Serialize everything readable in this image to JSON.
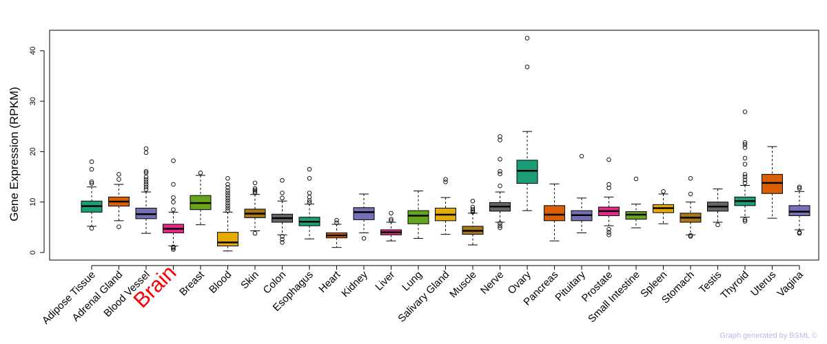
{
  "chart_data": {
    "type": "box",
    "title": "",
    "ylabel": "Gene Expression (RPKM)",
    "xlabel": "",
    "ylim": [
      -1,
      44
    ],
    "yticks": [
      0,
      10,
      20,
      30,
      40
    ],
    "highlight": {
      "category": "Brain",
      "color": "#ff0000"
    },
    "categories": [
      "Adipose Tissue",
      "Adrenal Gland",
      "Blood Vessel",
      "Brain",
      "Breast",
      "Blood",
      "Skin",
      "Colon",
      "Esophagus",
      "Heart",
      "Kidney",
      "Liver",
      "Lung",
      "Salivary Gland",
      "Muscle",
      "Nerve",
      "Ovary",
      "Pancreas",
      "Pituitary",
      "Prostate",
      "Small Intestine",
      "Spleen",
      "Stomach",
      "Testis",
      "Thyroid",
      "Uterus",
      "Vagina"
    ],
    "boxes": [
      {
        "whisker_low": 5.2,
        "q1": 8.0,
        "median": 9.2,
        "q3": 10.2,
        "whisker_high": 13.0,
        "outliers": [
          4.8,
          13.7,
          14.0,
          16.5,
          18.0
        ],
        "color": "#1b9e77"
      },
      {
        "whisker_low": 6.3,
        "q1": 9.2,
        "median": 10.1,
        "q3": 11.0,
        "whisker_high": 13.5,
        "outliers": [
          5.1,
          14.5,
          15.5
        ],
        "color": "#d95f02"
      },
      {
        "whisker_low": 3.8,
        "q1": 6.7,
        "median": 7.6,
        "q3": 8.8,
        "whisker_high": 12.0,
        "outliers": [
          12.5,
          13.0,
          13.5,
          14.0,
          14.5,
          15.0,
          15.8,
          16.1,
          19.8,
          20.6
        ],
        "color": "#7570b3"
      },
      {
        "whisker_low": 1.3,
        "q1": 3.9,
        "median": 4.7,
        "q3": 5.6,
        "whisker_high": 8.0,
        "outliers": [
          0.6,
          0.9,
          1.1,
          8.5,
          10.0,
          10.9,
          13.5,
          18.2
        ],
        "color": "#e7298a"
      },
      {
        "whisker_low": 5.5,
        "q1": 8.5,
        "median": 9.8,
        "q3": 11.3,
        "whisker_high": 15.3,
        "outliers": [
          15.8
        ],
        "color": "#66a61e"
      },
      {
        "whisker_low": 0.3,
        "q1": 1.3,
        "median": 2.0,
        "q3": 4.0,
        "whisker_high": 8.0,
        "outliers": [
          8.3,
          8.8,
          9.3,
          9.8,
          10.3,
          10.8,
          11.3,
          11.8,
          12.3,
          12.9,
          13.5,
          14.7
        ],
        "color": "#e6ab02"
      },
      {
        "whisker_low": 4.3,
        "q1": 6.9,
        "median": 7.7,
        "q3": 8.6,
        "whisker_high": 11.5,
        "outliers": [
          3.8,
          11.8,
          12.1,
          12.4,
          12.7,
          13.8
        ],
        "color": "#a6761d"
      },
      {
        "whisker_low": 3.5,
        "q1": 6.0,
        "median": 6.8,
        "q3": 7.6,
        "whisker_high": 10.2,
        "outliers": [
          2.0,
          2.6,
          3.2,
          10.8,
          11.8,
          14.3
        ],
        "color": "#666666"
      },
      {
        "whisker_low": 2.7,
        "q1": 5.3,
        "median": 6.1,
        "q3": 7.0,
        "whisker_high": 9.6,
        "outliers": [
          9.9,
          10.3,
          11.0,
          11.8,
          14.7,
          16.5
        ],
        "color": "#1b9e77"
      },
      {
        "whisker_low": 1.0,
        "q1": 2.9,
        "median": 3.4,
        "q3": 3.9,
        "whisker_high": 5.6,
        "outliers": [
          5.9,
          6.4
        ],
        "color": "#d95f02"
      },
      {
        "whisker_low": 3.9,
        "q1": 6.5,
        "median": 8.0,
        "q3": 8.9,
        "whisker_high": 11.6,
        "outliers": [
          2.8
        ],
        "color": "#7570b3"
      },
      {
        "whisker_low": 2.3,
        "q1": 3.5,
        "median": 4.0,
        "q3": 4.5,
        "whisker_high": 6.0,
        "outliers": [
          6.3,
          6.6,
          7.8
        ],
        "color": "#e7298a"
      },
      {
        "whisker_low": 2.8,
        "q1": 5.7,
        "median": 7.3,
        "q3": 8.3,
        "whisker_high": 12.2,
        "outliers": [],
        "color": "#66a61e"
      },
      {
        "whisker_low": 3.6,
        "q1": 6.3,
        "median": 7.5,
        "q3": 8.8,
        "whisker_high": 10.9,
        "outliers": [
          14.0,
          14.5
        ],
        "color": "#e6ab02"
      },
      {
        "whisker_low": 1.5,
        "q1": 3.6,
        "median": 4.3,
        "q3": 5.2,
        "whisker_high": 7.8,
        "outliers": [
          8.0,
          8.3,
          8.6,
          9.0,
          10.2
        ],
        "color": "#a6761d"
      },
      {
        "whisker_low": 6.0,
        "q1": 8.2,
        "median": 9.1,
        "q3": 9.9,
        "whisker_high": 12.0,
        "outliers": [
          4.9,
          5.3,
          5.8,
          13.2,
          15.6,
          16.1,
          18.5,
          22.3,
          23.0
        ],
        "color": "#666666"
      },
      {
        "whisker_low": 8.3,
        "q1": 13.7,
        "median": 16.2,
        "q3": 18.3,
        "whisker_high": 24.0,
        "outliers": [
          36.8,
          42.5
        ],
        "color": "#1b9e77"
      },
      {
        "whisker_low": 2.3,
        "q1": 6.3,
        "median": 7.5,
        "q3": 9.3,
        "whisker_high": 13.6,
        "outliers": [],
        "color": "#d95f02"
      },
      {
        "whisker_low": 3.9,
        "q1": 6.3,
        "median": 7.4,
        "q3": 8.3,
        "whisker_high": 10.8,
        "outliers": [
          19.1
        ],
        "color": "#7570b3"
      },
      {
        "whisker_low": 5.3,
        "q1": 7.3,
        "median": 8.2,
        "q3": 9.0,
        "whisker_high": 11.0,
        "outliers": [
          3.5,
          4.0,
          4.6,
          12.8,
          13.5,
          18.4
        ],
        "color": "#e7298a"
      },
      {
        "whisker_low": 4.9,
        "q1": 6.6,
        "median": 7.5,
        "q3": 8.1,
        "whisker_high": 9.6,
        "outliers": [
          14.6
        ],
        "color": "#66a61e"
      },
      {
        "whisker_low": 5.7,
        "q1": 7.9,
        "median": 8.8,
        "q3": 9.5,
        "whisker_high": 11.6,
        "outliers": [
          12.1
        ],
        "color": "#e6ab02"
      },
      {
        "whisker_low": 3.5,
        "q1": 6.0,
        "median": 6.9,
        "q3": 7.8,
        "whisker_high": 10.0,
        "outliers": [
          3.2,
          3.4,
          11.6,
          14.7
        ],
        "color": "#a6761d"
      },
      {
        "whisker_low": 6.0,
        "q1": 8.2,
        "median": 9.1,
        "q3": 10.0,
        "whisker_high": 12.6,
        "outliers": [
          5.5
        ],
        "color": "#666666"
      },
      {
        "whisker_low": 7.0,
        "q1": 9.3,
        "median": 10.2,
        "q3": 11.0,
        "whisker_high": 13.3,
        "outliers": [
          6.2,
          6.5,
          13.8,
          14.4,
          15.0,
          15.5,
          17.5,
          18.7,
          20.8,
          21.4,
          21.8,
          27.9
        ],
        "color": "#1b9e77"
      },
      {
        "whisker_low": 6.8,
        "q1": 11.7,
        "median": 13.8,
        "q3": 15.5,
        "whisker_high": 21.0,
        "outliers": [],
        "color": "#d95f02"
      },
      {
        "whisker_low": 4.5,
        "q1": 7.3,
        "median": 8.1,
        "q3": 9.3,
        "whisker_high": 12.1,
        "outliers": [
          3.8,
          4.0,
          12.7,
          13.0
        ],
        "color": "#7570b3"
      }
    ]
  },
  "credit_text": "Graph generated by BSML ©"
}
